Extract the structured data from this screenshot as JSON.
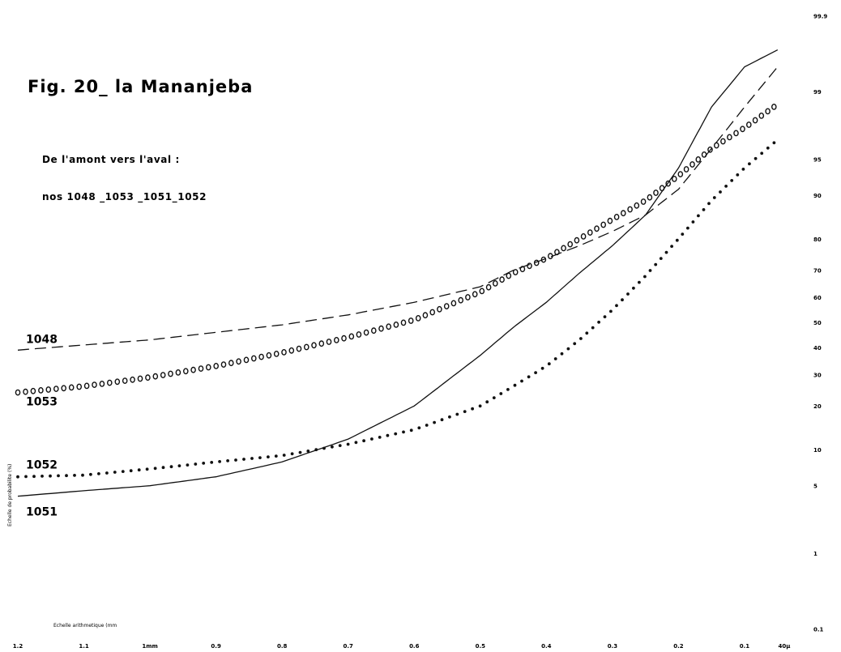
{
  "chart_data": {
    "type": "line",
    "title": "Fig. 20_ la Mananjeba",
    "subtitle_1": "De l'amont vers l'aval :",
    "subtitle_2": "nos 1048 _1053 _1051_1052",
    "xlabel": "Echelle arithmetique (mm",
    "ylabel": "Echelle de probabilite (%)",
    "x_scale": "reversed linear (mm)",
    "y_scale": "probability",
    "xlim": [
      1.2,
      0.035
    ],
    "x_ticks": [
      "1.2",
      "1.1",
      "1mm",
      "0.9",
      "0.8",
      "0.7",
      "0.6",
      "0.5",
      "0.4",
      "0.3",
      "0.2",
      "0.1",
      "40µ"
    ],
    "y_ticks": [
      "99.9",
      "99",
      "95",
      "90",
      "80",
      "70",
      "60",
      "50",
      "40",
      "30",
      "20",
      "10",
      "5",
      "1",
      "0.1"
    ],
    "grid": false,
    "legend": "none (series labelled on left edge)",
    "series": [
      {
        "name": "1048",
        "style": "dashed",
        "x": [
          1.2,
          1.1,
          1.0,
          0.9,
          0.8,
          0.7,
          0.6,
          0.5,
          0.45,
          0.4,
          0.35,
          0.3,
          0.25,
          0.2,
          0.15,
          0.1,
          0.05
        ],
        "y": [
          39,
          41,
          43,
          46,
          49,
          53,
          58,
          64,
          70,
          74,
          78,
          82,
          86,
          91,
          96,
          98.5,
          99.5
        ]
      },
      {
        "name": "1053",
        "style": "circles",
        "x": [
          1.2,
          1.1,
          1.0,
          0.9,
          0.8,
          0.7,
          0.6,
          0.5,
          0.45,
          0.4,
          0.35,
          0.3,
          0.25,
          0.2,
          0.15,
          0.1,
          0.05
        ],
        "y": [
          24,
          26,
          29,
          33,
          38,
          44,
          51,
          62,
          69,
          74,
          80,
          85,
          89,
          93,
          96,
          97.5,
          98.6
        ]
      },
      {
        "name": "1051",
        "style": "solid",
        "x": [
          1.2,
          1.1,
          1.0,
          0.9,
          0.8,
          0.7,
          0.6,
          0.5,
          0.45,
          0.4,
          0.35,
          0.3,
          0.25,
          0.2,
          0.15,
          0.1,
          0.05
        ],
        "y": [
          4,
          4.5,
          5,
          6,
          8,
          12,
          20,
          37,
          48,
          58,
          69,
          78,
          86,
          94,
          98.5,
          99.5,
          99.7
        ]
      },
      {
        "name": "1052",
        "style": "dots",
        "x": [
          1.2,
          1.1,
          1.0,
          0.9,
          0.8,
          0.7,
          0.6,
          0.5,
          0.45,
          0.4,
          0.35,
          0.3,
          0.25,
          0.2,
          0.15,
          0.1,
          0.05
        ],
        "y": [
          6,
          6.2,
          7,
          8,
          9,
          11,
          14,
          20,
          26,
          33,
          43,
          55,
          68,
          80,
          89,
          94,
          96.7
        ]
      }
    ]
  }
}
